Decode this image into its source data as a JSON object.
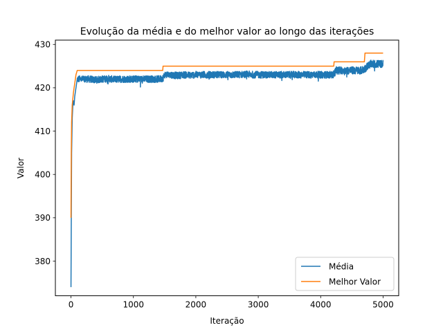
{
  "chart_data": {
    "type": "line",
    "title": "Evolução da média e do melhor valor ao longo das iterações",
    "xlabel": "Iteração",
    "ylabel": "Valor",
    "xlim": [
      -250,
      5250
    ],
    "ylim": [
      372,
      431
    ],
    "xticks": [
      0,
      1000,
      2000,
      3000,
      4000,
      5000
    ],
    "yticks": [
      380,
      390,
      400,
      410,
      420,
      430
    ],
    "grid": false,
    "legend_position": "lower-right",
    "series": [
      {
        "name": "Média",
        "color": "#1f77b4",
        "x": [
          0,
          5,
          10,
          20,
          30,
          40,
          50,
          60,
          70,
          80,
          90,
          100,
          150,
          200,
          300,
          400,
          500,
          600,
          700,
          800,
          900,
          1000,
          1100,
          1200,
          1300,
          1400,
          1450,
          1480,
          1500,
          1600,
          1700,
          1800,
          1900,
          2000,
          2200,
          2400,
          2600,
          2800,
          3000,
          3200,
          3400,
          3600,
          3800,
          4000,
          4100,
          4200,
          4250,
          4300,
          4400,
          4500,
          4600,
          4650,
          4700,
          4750,
          4800,
          4850,
          4900,
          4950,
          5000
        ],
        "y": [
          374,
          390,
          405,
          413,
          416,
          417,
          416,
          418,
          419,
          420,
          421,
          422,
          422,
          422,
          422,
          421.8,
          422,
          422.1,
          421.9,
          422,
          422,
          422,
          422,
          422,
          422,
          422,
          422.1,
          422.3,
          423,
          423,
          422.8,
          423,
          422.9,
          423,
          423,
          423,
          423,
          423.1,
          423,
          423,
          423,
          423,
          423,
          423,
          423,
          423,
          424,
          424,
          424,
          424,
          424,
          424,
          424.3,
          425,
          425.5,
          425.5,
          425.5,
          425.5,
          425.5
        ],
        "noise": 0.8
      },
      {
        "name": "Melhor Valor",
        "color": "#ff7f0e",
        "x": [
          0,
          5,
          10,
          20,
          40,
          60,
          80,
          100,
          1470,
          1475,
          4210,
          4215,
          4700,
          4710,
          5000
        ],
        "y": [
          390,
          405,
          412,
          416,
          419,
          421,
          423,
          424,
          424,
          425,
          425,
          426,
          426,
          428,
          428
        ]
      }
    ]
  }
}
